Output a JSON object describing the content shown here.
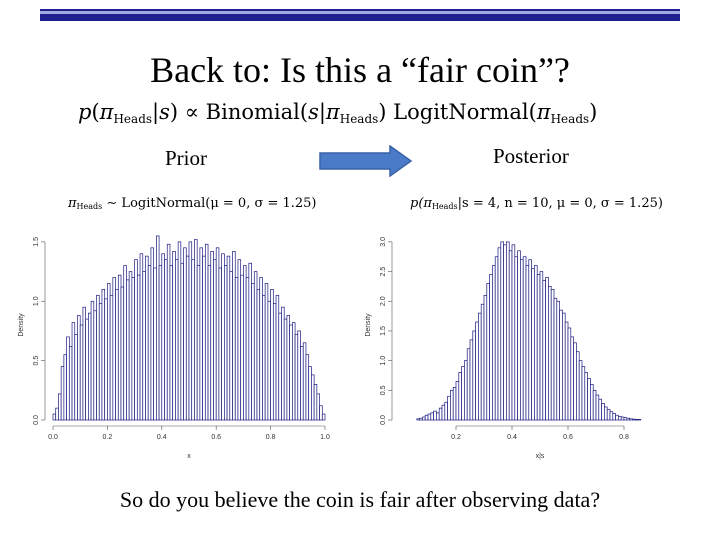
{
  "slide": {
    "title": "Back to: Is this a “fair coin”?",
    "formula": {
      "p": "p",
      "pi": "π",
      "heads": "Heads",
      "given": "s",
      "propto": "∝",
      "binomial": "Binomial",
      "logitnormal": "LogitNormal"
    },
    "prior_label": "Prior",
    "posterior_label": "Posterior",
    "question": "So do you believe the coin is fair after observing data?",
    "accent_color": "#4a7bc8",
    "bar_color": "#1a1a80"
  },
  "chart_data": [
    {
      "type": "bar",
      "title": "πHeads ∼ LogitNormal(μ = 0, σ = 1.25)",
      "title_parts": {
        "lhs": "π",
        "sub": "Heads",
        "rhs": "∼ LogitNormal(μ = 0, σ = 1.25)"
      },
      "xlabel": "x",
      "ylabel": "Density",
      "xlim": [
        0.0,
        1.0
      ],
      "ylim": [
        0.0,
        1.6
      ],
      "xticks": [
        "0.0",
        "0.2",
        "0.4",
        "0.6",
        "0.8",
        "1.0"
      ],
      "yticks": [
        "0.0",
        "0.5",
        "1.0",
        "1.5"
      ],
      "bin_start": 0.0,
      "bin_width": 0.01,
      "values": [
        0.05,
        0.1,
        0.22,
        0.45,
        0.55,
        0.7,
        0.62,
        0.82,
        0.72,
        0.88,
        0.8,
        0.95,
        0.85,
        0.9,
        1.0,
        0.92,
        1.05,
        0.98,
        1.1,
        1.02,
        1.15,
        1.05,
        1.2,
        1.1,
        1.22,
        1.12,
        1.3,
        1.18,
        1.25,
        1.2,
        1.35,
        1.22,
        1.4,
        1.25,
        1.38,
        1.3,
        1.45,
        1.28,
        1.55,
        1.3,
        1.4,
        1.35,
        1.48,
        1.3,
        1.42,
        1.35,
        1.5,
        1.32,
        1.45,
        1.38,
        1.5,
        1.35,
        1.52,
        1.3,
        1.45,
        1.38,
        1.48,
        1.3,
        1.42,
        1.35,
        1.45,
        1.28,
        1.4,
        1.3,
        1.38,
        1.25,
        1.42,
        1.2,
        1.35,
        1.22,
        1.3,
        1.2,
        1.32,
        1.15,
        1.25,
        1.1,
        1.2,
        1.05,
        1.15,
        1.0,
        1.1,
        0.98,
        1.05,
        0.9,
        0.95,
        0.85,
        0.88,
        0.8,
        0.82,
        0.72,
        0.75,
        0.62,
        0.65,
        0.55,
        0.45,
        0.38,
        0.3,
        0.22,
        0.12,
        0.05
      ]
    },
    {
      "type": "bar",
      "title": "p(πHeads | s = 4, n = 10, μ = 0, σ = 1.25)",
      "title_parts": {
        "lhs": "p(π",
        "sub": "Heads",
        "rhs": "|s = 4, n = 10, μ = 0, σ = 1.25)"
      },
      "xlabel": "x|s",
      "ylabel": "Density",
      "xlim": [
        0.0,
        1.0
      ],
      "ylim": [
        0.0,
        3.2
      ],
      "xticks": [
        "0.2",
        "0.4",
        "0.6",
        "0.8"
      ],
      "yticks": [
        "0.0",
        "0.5",
        "1.0",
        "1.5",
        "2.0",
        "2.5",
        "3.0"
      ],
      "bin_start": 0.06,
      "bin_width": 0.01,
      "values": [
        0.02,
        0.03,
        0.05,
        0.08,
        0.1,
        0.12,
        0.15,
        0.12,
        0.2,
        0.25,
        0.3,
        0.4,
        0.5,
        0.55,
        0.65,
        0.8,
        0.9,
        1.0,
        1.2,
        1.35,
        1.5,
        1.65,
        1.8,
        1.95,
        2.1,
        2.3,
        2.45,
        2.6,
        2.75,
        2.9,
        3.0,
        2.95,
        3.0,
        2.85,
        2.95,
        2.75,
        2.85,
        2.7,
        2.75,
        2.6,
        2.7,
        2.55,
        2.6,
        2.45,
        2.5,
        2.35,
        2.4,
        2.25,
        2.2,
        2.05,
        2.0,
        1.85,
        1.8,
        1.65,
        1.55,
        1.4,
        1.3,
        1.15,
        1.0,
        0.9,
        0.8,
        0.7,
        0.6,
        0.5,
        0.42,
        0.35,
        0.28,
        0.22,
        0.18,
        0.14,
        0.11,
        0.08,
        0.06,
        0.05,
        0.04,
        0.03,
        0.02,
        0.015,
        0.01,
        0.01
      ]
    }
  ]
}
